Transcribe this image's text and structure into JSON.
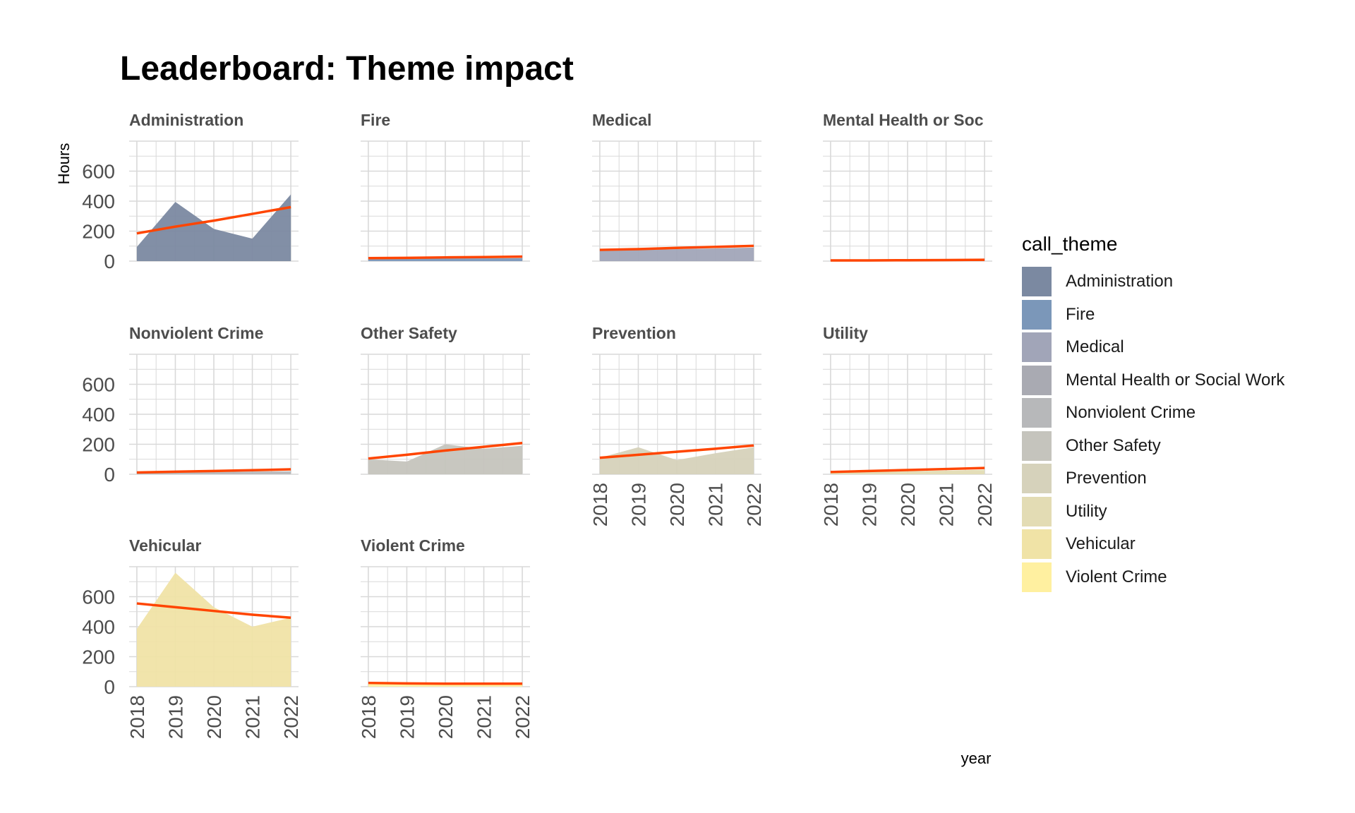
{
  "title": "Leaderboard: Theme impact",
  "chart_data": {
    "type": "area",
    "facet_by": "call_theme",
    "x": [
      2018,
      2019,
      2020,
      2021,
      2022
    ],
    "xlabel": "year",
    "ylabel": "Hours",
    "ylim": [
      0,
      800
    ],
    "yticks": [
      0,
      200,
      400,
      600
    ],
    "xticks": [
      2018,
      2019,
      2020,
      2021,
      2022
    ],
    "trend_color": "#ff4500",
    "grid": true,
    "legend": {
      "title": "call_theme",
      "placement": "right",
      "items": [
        {
          "name": "Administration",
          "color": "#7b89a1"
        },
        {
          "name": "Fire",
          "color": "#7b97b9"
        },
        {
          "name": "Medical",
          "color": "#a1a5b8"
        },
        {
          "name": "Mental Health or Social Work",
          "color": "#a9aab2"
        },
        {
          "name": "Nonviolent Crime",
          "color": "#b7b8ba"
        },
        {
          "name": "Other Safety",
          "color": "#c5c4bd"
        },
        {
          "name": "Prevention",
          "color": "#d6d2bb"
        },
        {
          "name": "Utility",
          "color": "#e3dcb4"
        },
        {
          "name": "Vehicular",
          "color": "#f0e3a6"
        },
        {
          "name": "Violent Crime",
          "color": "#fff0a0"
        }
      ]
    },
    "panels": [
      {
        "name": "Administration",
        "strip": "Administration",
        "color": "#7b89a1",
        "values": [
          95,
          395,
          215,
          150,
          445
        ],
        "trend": [
          185,
          230,
          270,
          315,
          360
        ]
      },
      {
        "name": "Fire",
        "strip": "Fire",
        "color": "#7b97b9",
        "values": [
          15,
          15,
          18,
          18,
          20
        ],
        "trend": [
          20,
          22,
          25,
          27,
          30
        ]
      },
      {
        "name": "Medical",
        "strip": "Medical",
        "color": "#a1a5b8",
        "values": [
          70,
          75,
          80,
          85,
          90
        ],
        "trend": [
          75,
          80,
          88,
          95,
          102
        ]
      },
      {
        "name": "Mental Health or Social Work",
        "strip": "Mental Health or Soc",
        "color": "#a9aab2",
        "values": [
          5,
          5,
          5,
          5,
          8
        ],
        "trend": [
          5,
          5,
          6,
          7,
          9
        ]
      },
      {
        "name": "Nonviolent Crime",
        "strip": "Nonviolent Crime",
        "color": "#b7b8ba",
        "values": [
          10,
          12,
          15,
          18,
          20
        ],
        "trend": [
          12,
          17,
          22,
          27,
          33
        ]
      },
      {
        "name": "Other Safety",
        "strip": "Other Safety",
        "color": "#c5c4bd",
        "values": [
          100,
          85,
          200,
          170,
          190
        ],
        "trend": [
          105,
          130,
          158,
          183,
          208
        ]
      },
      {
        "name": "Prevention",
        "strip": "Prevention",
        "color": "#d6d2bb",
        "values": [
          110,
          180,
          95,
          140,
          180
        ],
        "trend": [
          110,
          130,
          150,
          170,
          192
        ]
      },
      {
        "name": "Utility",
        "strip": "Utility",
        "color": "#e3dcb4",
        "values": [
          10,
          15,
          20,
          25,
          30
        ],
        "trend": [
          15,
          22,
          28,
          35,
          42
        ]
      },
      {
        "name": "Vehicular",
        "strip": "Vehicular",
        "color": "#f0e3a6",
        "values": [
          385,
          760,
          530,
          400,
          460
        ],
        "trend": [
          555,
          530,
          505,
          480,
          460
        ]
      },
      {
        "name": "Violent Crime",
        "strip": "Violent Crime",
        "color": "#fff0a0",
        "values": [
          25,
          20,
          18,
          18,
          18
        ],
        "trend": [
          25,
          22,
          20,
          20,
          20
        ]
      }
    ]
  }
}
